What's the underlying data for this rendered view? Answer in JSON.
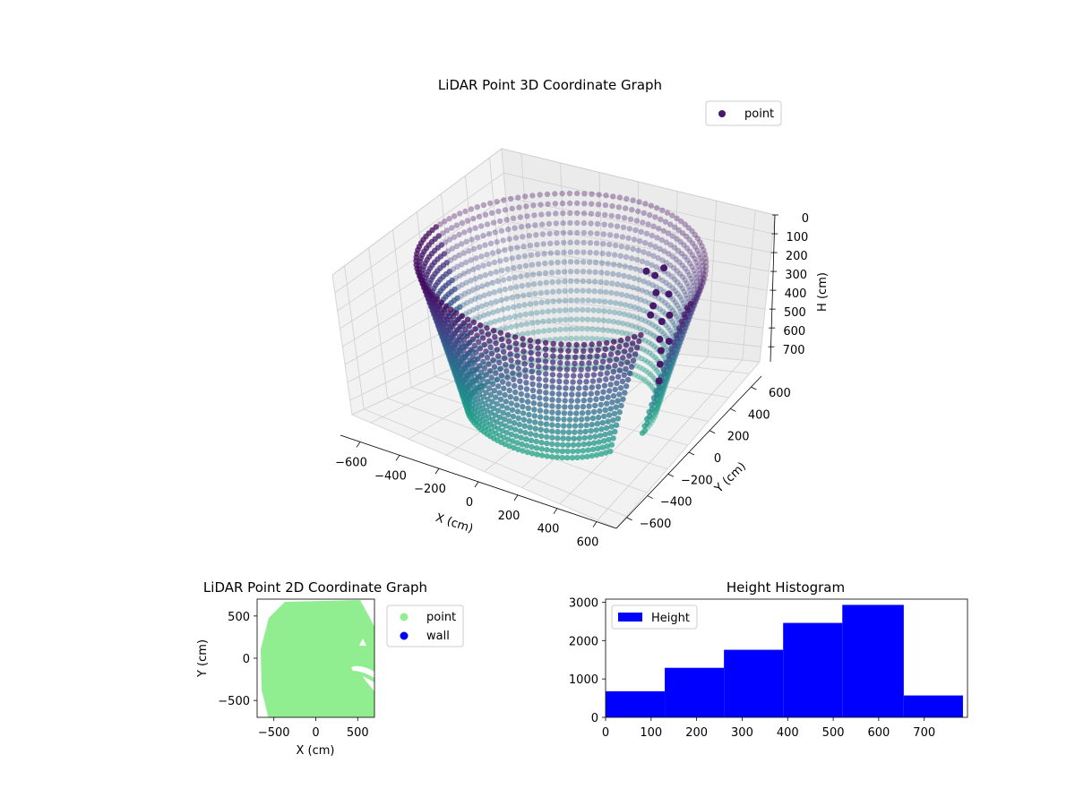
{
  "chart_data": [
    {
      "type": "scatter3d",
      "title": "LiDAR Point 3D Coordinate Graph",
      "xlabel": "X (cm)",
      "ylabel": "Y (cm)",
      "zlabel": "H (cm)",
      "xlim": [
        -650,
        650
      ],
      "ylim": [
        -650,
        650
      ],
      "zlim": [
        0,
        780
      ],
      "z_inverted": true,
      "xticks": [
        "−600",
        "−400",
        "−200",
        "0",
        "200",
        "400",
        "600"
      ],
      "yticks": [
        "−600",
        "−400",
        "−200",
        "0",
        "200",
        "400",
        "600"
      ],
      "zticks": [
        "0",
        "100",
        "200",
        "300",
        "400",
        "500",
        "600",
        "700"
      ],
      "legend": {
        "label": "point",
        "color": "#46196a",
        "placement": "upper-right"
      },
      "colormap": "viridis",
      "grid": true,
      "shape": "bowl-shaped room scan, radius about 600 cm, wall rising to 0 cm height at the rim and floor near 780 cm, scattered clutter at upper right"
    },
    {
      "type": "scatter",
      "title": "LiDAR Point 2D Coordinate Graph",
      "xlabel": "X (cm)",
      "ylabel": "Y (cm)",
      "xlim": [
        -700,
        700
      ],
      "ylim": [
        -700,
        700
      ],
      "xticks": [
        "−500",
        "0",
        "500"
      ],
      "yticks": [
        "500",
        "0",
        "−500"
      ],
      "series": [
        {
          "name": "point",
          "color": "#90ee90"
        },
        {
          "name": "wall",
          "color": "#0000ff"
        }
      ],
      "legend_placement": "outside-right"
    },
    {
      "type": "bar",
      "title": "Height Histogram",
      "bin_edges": [
        0,
        130,
        260,
        390,
        520,
        655,
        785
      ],
      "values": [
        680,
        1290,
        1760,
        2460,
        2930,
        570
      ],
      "xlim": [
        0,
        795
      ],
      "ylim": [
        0,
        3080
      ],
      "xticks": [
        "0",
        "100",
        "200",
        "300",
        "400",
        "500",
        "600",
        "700"
      ],
      "yticks": [
        "0",
        "1000",
        "2000",
        "3000"
      ],
      "color": "#0000ff",
      "legend": {
        "label": "Height",
        "placement": "upper-left"
      }
    }
  ]
}
